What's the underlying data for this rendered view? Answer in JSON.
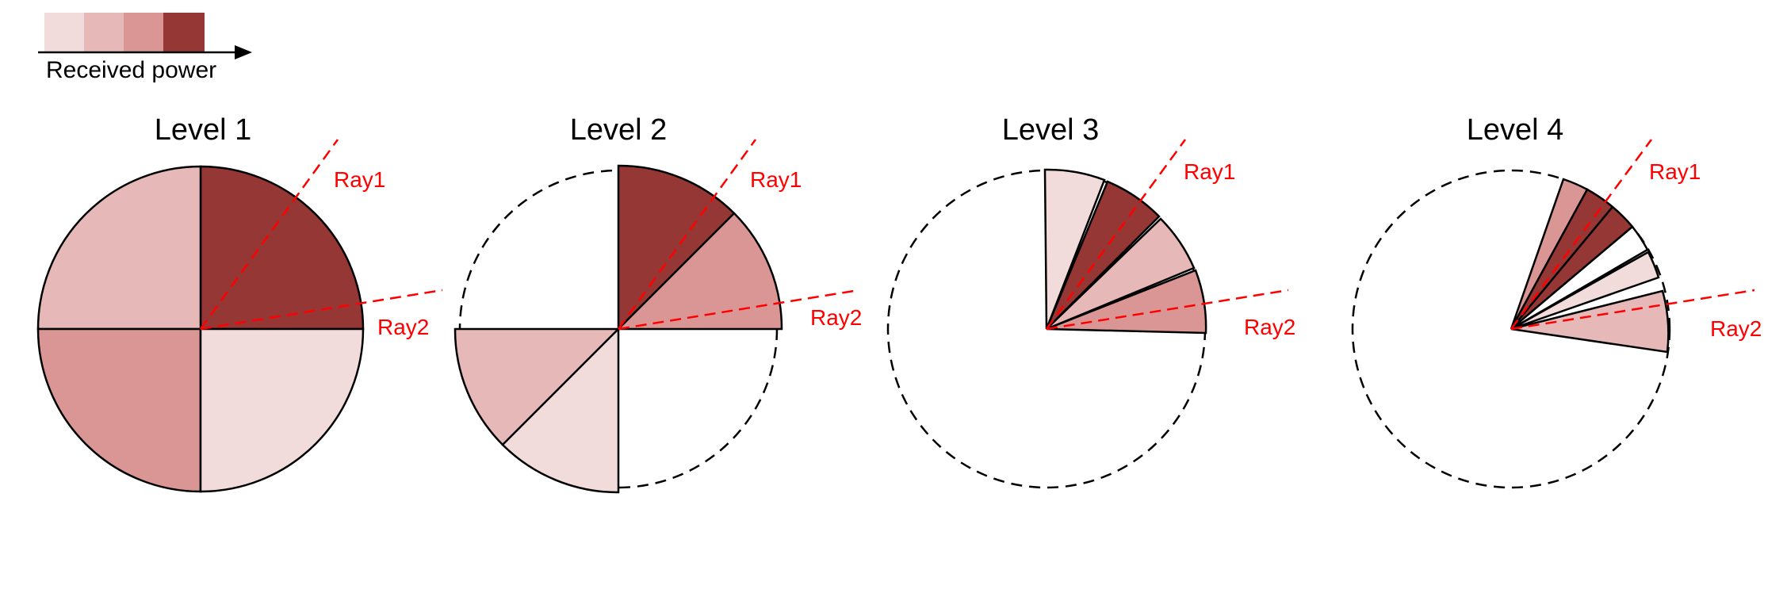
{
  "legend": {
    "label": "Received power",
    "colors": [
      "#f2dcdb",
      "#e6b9b8",
      "#d99694",
      "#953735"
    ]
  },
  "ray_color": "#ff0000",
  "rays": [
    "Ray1",
    "Ray2"
  ],
  "levels": [
    {
      "title": "Level 1"
    },
    {
      "title": "Level 2"
    },
    {
      "title": "Level 3"
    },
    {
      "title": "Level 4"
    }
  ]
}
